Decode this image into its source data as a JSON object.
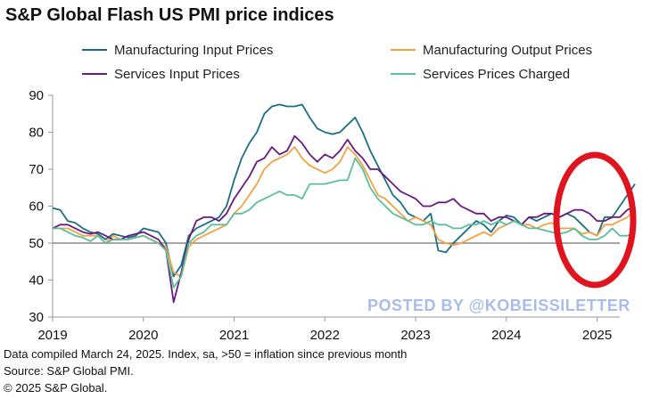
{
  "colors": {
    "manufacturing_input": "#1a6e86",
    "manufacturing_output": "#f2a341",
    "services_input": "#6a1a80",
    "services_charged": "#5bbf9e",
    "baseline": "#888888",
    "axis": "#999999",
    "highlight_ring": "#e0141e",
    "watermark": "#a9bde6"
  },
  "watermark": "POSTED BY @KOBEISSILETTER",
  "footnotes": {
    "line1": "Data compiled March 24, 2025. Index,  sa, >50 = inflation  since previous month",
    "line2": "Source: S&P Global PMI.",
    "line3": "© 2025 S&P Global."
  },
  "chart_data": {
    "type": "line",
    "title": "S&P Global Flash US PMI price indices",
    "xlabel": "",
    "ylabel": "",
    "ylim": [
      30,
      90
    ],
    "yticks": [
      "90",
      "80",
      "70",
      "60",
      "50",
      "40",
      "30"
    ],
    "xticks": [
      "2019",
      "2020",
      "2021",
      "2022",
      "2023",
      "2024",
      "2025"
    ],
    "xlim": [
      2019.0,
      2025.25
    ],
    "x_start": 2019.0,
    "x_step_months": 1,
    "reference_line": 50,
    "legend": [
      "Manufacturing Input Prices",
      "Manufacturing Output Prices",
      "Services Input Prices",
      "Services Prices Charged"
    ],
    "legend_position": "top",
    "highlight": "Latest readings (early 2025) circled in red",
    "series": [
      {
        "name": "Manufacturing Input Prices",
        "color_key": "manufacturing_input",
        "values": [
          59.5,
          59,
          56,
          55.5,
          54,
          53,
          52.5,
          51,
          52.5,
          52,
          51.5,
          52,
          54,
          53.5,
          53,
          50,
          41,
          44,
          52,
          54,
          55,
          56,
          57,
          60,
          67,
          73,
          77,
          80,
          85,
          87,
          87.5,
          87,
          87,
          87.5,
          84,
          81,
          80,
          79.5,
          80,
          82,
          84,
          80,
          75,
          71,
          67,
          63,
          61,
          58,
          57,
          56,
          58,
          48,
          47.5,
          50,
          52,
          54,
          56,
          55,
          53,
          56,
          57.5,
          57,
          55,
          57,
          56,
          57,
          58,
          57,
          58,
          57,
          55,
          53,
          52,
          57,
          57,
          60,
          63,
          66
        ]
      },
      {
        "name": "Manufacturing Output Prices",
        "color_key": "manufacturing_output",
        "values": [
          54,
          54,
          54,
          53,
          52,
          52,
          52,
          50,
          52,
          51,
          51,
          51.5,
          52,
          51,
          50,
          49,
          42,
          41,
          49,
          51,
          52,
          53,
          54,
          55,
          58,
          60,
          63,
          66,
          70,
          72,
          73,
          74,
          76,
          73,
          71,
          70,
          69,
          70,
          72,
          76,
          74,
          71,
          67,
          63,
          62,
          60,
          58,
          56,
          57,
          56,
          55,
          51,
          50,
          49.5,
          50,
          51,
          52,
          53,
          52,
          54,
          55,
          56,
          55,
          55,
          54,
          55,
          55.5,
          54,
          54,
          54,
          52.5,
          53,
          52,
          55,
          55,
          56,
          57,
          59
        ]
      },
      {
        "name": "Services Input Prices",
        "color_key": "services_input",
        "values": [
          54,
          55,
          55,
          54,
          53,
          52.5,
          53,
          52,
          51,
          51,
          52,
          52.5,
          53,
          52,
          51,
          48,
          34,
          42,
          51,
          56,
          57,
          57,
          56,
          58,
          62,
          65,
          68,
          72,
          73,
          76,
          74,
          75,
          79,
          77,
          74,
          72,
          74,
          73,
          75,
          78,
          75,
          73,
          70,
          70,
          68,
          66,
          64,
          63,
          62,
          60,
          60,
          61,
          61,
          62,
          60,
          59,
          58,
          58,
          56,
          57,
          57,
          56,
          55,
          57,
          57,
          58,
          58,
          57,
          58,
          59,
          59,
          58,
          56,
          56,
          57,
          57,
          59,
          60
        ]
      },
      {
        "name": "Services Prices Charged",
        "color_key": "services_charged",
        "values": [
          54,
          54,
          53,
          52,
          51.5,
          50.5,
          52,
          50,
          51,
          51,
          51,
          51.5,
          52,
          51,
          50,
          48,
          38,
          41,
          50,
          52,
          53,
          55,
          55,
          55,
          58,
          58,
          59,
          61,
          62,
          63,
          64,
          63,
          63,
          62,
          66,
          66,
          66,
          66.5,
          67,
          67,
          73,
          70,
          65,
          62,
          60,
          58,
          57,
          56,
          55,
          55,
          56,
          55,
          55,
          54,
          54,
          55,
          55,
          56,
          55,
          56,
          55,
          56,
          55,
          54,
          54,
          53.5,
          53,
          52.5,
          53,
          54,
          52,
          51,
          51,
          52,
          54,
          52,
          52,
          53
        ]
      }
    ]
  }
}
